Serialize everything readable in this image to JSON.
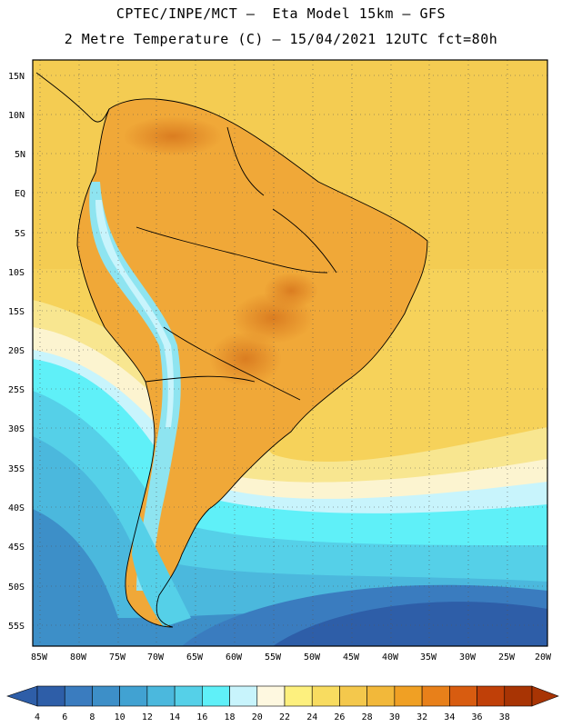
{
  "header": {
    "line1": "CPTEC/INPE/MCT –  Eta Model 15km – GFS",
    "line2": "2 Metre Temperature (C) – 15/04/2021 12UTC fct=80h"
  },
  "map": {
    "lat_labels": [
      "15N",
      "10N",
      "5N",
      "EQ",
      "5S",
      "10S",
      "15S",
      "20S",
      "25S",
      "30S",
      "35S",
      "40S",
      "45S",
      "50S",
      "55S"
    ],
    "lon_labels": [
      "85W",
      "80W",
      "75W",
      "70W",
      "65W",
      "60W",
      "55W",
      "50W",
      "45W",
      "40W",
      "35W",
      "30W",
      "25W",
      "20W"
    ]
  },
  "legend": {
    "ticks": [
      "4",
      "6",
      "8",
      "10",
      "12",
      "14",
      "16",
      "18",
      "20",
      "22",
      "24",
      "26",
      "28",
      "30",
      "32",
      "34",
      "36",
      "38"
    ],
    "colors": [
      "#2e5ea8",
      "#3a7cbf",
      "#3d8fc8",
      "#41a2d2",
      "#4bb8dd",
      "#55d0e8",
      "#5ff0f8",
      "#c8f4fc",
      "#fef8e0",
      "#fdf07e",
      "#f8dc60",
      "#f4c84c",
      "#f2b83a",
      "#f0a024",
      "#e8801a",
      "#d85c10",
      "#c04008",
      "#a83404"
    ]
  }
}
